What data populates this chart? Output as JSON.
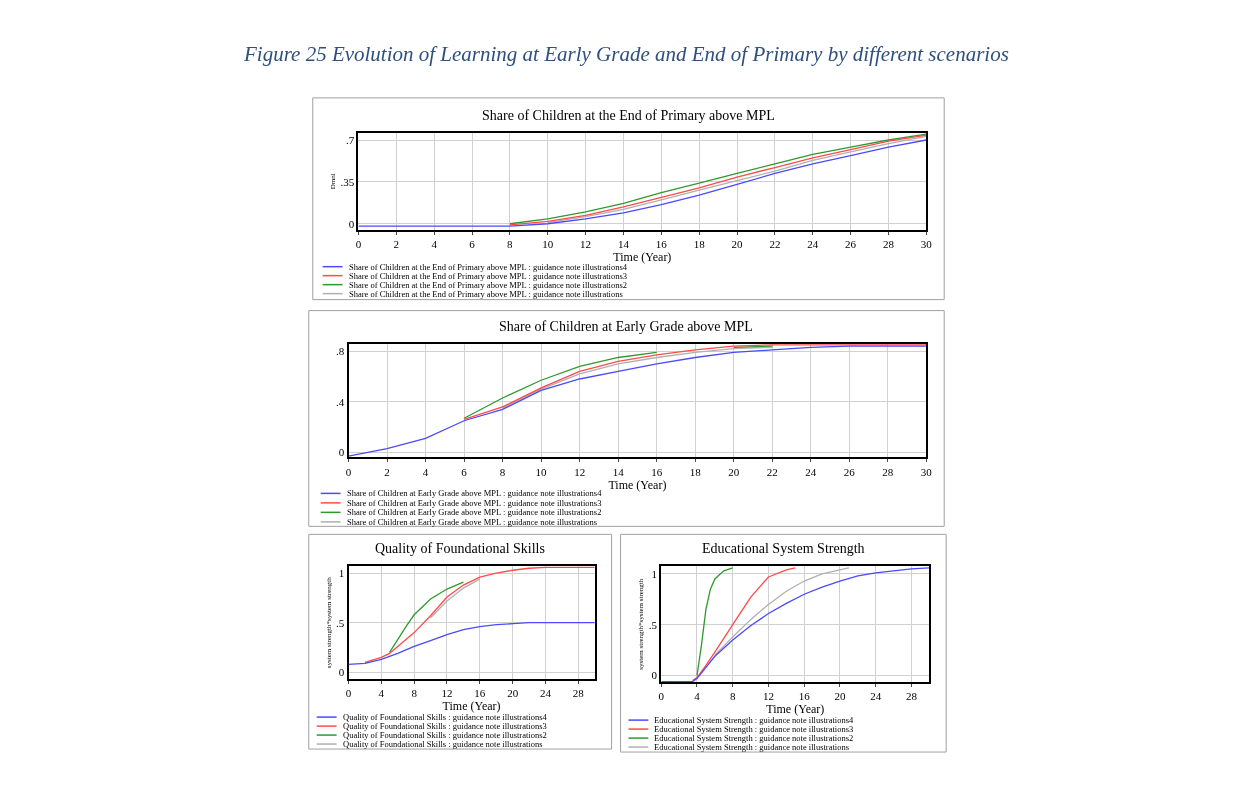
{
  "chart_data": [
    {
      "type": "line",
      "title": "Share of Children at the End of Primary above MPL",
      "xlabel": "Time (Year)",
      "ylabel": "Dmnl",
      "annotations": [
        "Figure 25 Evolution of Learning at Early Grade and End of Primary by different scenarios"
      ],
      "x": [
        0,
        2,
        4,
        6,
        8,
        10,
        12,
        14,
        16,
        18,
        20,
        22,
        24,
        26,
        28,
        30
      ],
      "xlim": [
        0,
        30
      ],
      "xticks": [
        0,
        2,
        4,
        6,
        8,
        10,
        12,
        14,
        16,
        18,
        20,
        22,
        24,
        26,
        28,
        30
      ],
      "ylim": [
        -0.05,
        0.76
      ],
      "yticks": [
        0,
        {
          "value": 0.35,
          "label": ".35"
        },
        {
          "value": 0.7,
          "label": ".7"
        }
      ],
      "grid": true,
      "legend": "bottom",
      "series": [
        {
          "name": "Share of Children at the End of Primary above MPL : guidance note illustrations4",
          "color": "#4a4aff",
          "values": [
            -0.02,
            -0.02,
            -0.02,
            -0.02,
            -0.02,
            0.0,
            0.04,
            0.09,
            0.16,
            0.24,
            0.33,
            0.42,
            0.5,
            0.57,
            0.64,
            0.7
          ]
        },
        {
          "name": "Share of Children at the End of Primary above MPL : guidance note illustrations3",
          "color": "#ff4a4a",
          "values": [
            null,
            null,
            null,
            null,
            -0.01,
            0.02,
            0.07,
            0.14,
            0.22,
            0.3,
            0.39,
            0.47,
            0.55,
            0.62,
            0.69,
            0.74
          ]
        },
        {
          "name": "Share of Children at the End of Primary above MPL : guidance note illustrations2",
          "color": "#2e9a2e",
          "values": [
            null,
            null,
            null,
            null,
            0.0,
            0.04,
            0.1,
            0.17,
            0.26,
            0.34,
            0.42,
            0.5,
            0.58,
            0.64,
            0.7,
            0.75
          ]
        },
        {
          "name": "Share of Children at the End of Primary above MPL : guidance note illustrations",
          "color": "#b0b0b0",
          "values": [
            null,
            null,
            null,
            null,
            null,
            0.01,
            0.06,
            0.12,
            0.2,
            0.28,
            0.36,
            0.44,
            0.53,
            0.6,
            0.67,
            0.73
          ]
        }
      ]
    },
    {
      "type": "line",
      "title": "Share of Children at Early Grade above MPL",
      "xlabel": "Time (Year)",
      "x": [
        0,
        2,
        4,
        6,
        8,
        10,
        12,
        14,
        16,
        18,
        20,
        22,
        24,
        26,
        28,
        30
      ],
      "xlim": [
        0,
        30
      ],
      "xticks": [
        0,
        2,
        4,
        6,
        8,
        10,
        12,
        14,
        16,
        18,
        20,
        22,
        24,
        26,
        28,
        30
      ],
      "ylim": [
        -0.04,
        0.86
      ],
      "yticks": [
        0,
        {
          "value": 0.4,
          "label": ".4"
        },
        {
          "value": 0.8,
          "label": ".8"
        }
      ],
      "grid": true,
      "legend": "bottom",
      "series": [
        {
          "name": "Share of Children at Early Grade above MPL : guidance note illustrations4",
          "color": "#4a4aff",
          "values": [
            -0.03,
            0.03,
            0.11,
            0.25,
            0.34,
            0.49,
            0.58,
            0.64,
            0.7,
            0.75,
            0.79,
            0.81,
            0.83,
            0.84,
            0.84,
            0.84
          ]
        },
        {
          "name": "Share of Children at Early Grade above MPL : guidance note illustrations3",
          "color": "#ff4a4a",
          "values": [
            null,
            null,
            null,
            0.26,
            0.36,
            0.51,
            0.64,
            0.72,
            0.77,
            0.81,
            0.84,
            0.85,
            0.85,
            0.85,
            0.85,
            0.85
          ]
        },
        {
          "name": "Share of Children at Early Grade above MPL : guidance note illustrations2",
          "color": "#2e9a2e",
          "values": [
            null,
            null,
            null,
            0.27,
            0.43,
            0.57,
            0.68,
            0.75,
            0.79,
            null,
            0.83,
            0.84,
            null,
            null,
            null,
            null
          ]
        },
        {
          "name": "Share of Children at Early Grade above MPL : guidance note illustrations",
          "color": "#b0b0b0",
          "values": [
            null,
            null,
            null,
            null,
            0.35,
            0.5,
            0.62,
            0.7,
            0.75,
            0.79,
            0.82,
            0.83,
            null,
            null,
            null,
            null
          ]
        }
      ]
    },
    {
      "type": "line",
      "title": "Quality of Foundational Skills",
      "xlabel": "Time (Year)",
      "ylabel": "system strength*system strength",
      "xlim": [
        0,
        30
      ],
      "xticks": [
        0,
        4,
        8,
        12,
        16,
        20,
        24,
        28
      ],
      "ylim": [
        -0.07,
        1.07
      ],
      "yticks": [
        0,
        {
          "value": 0.5,
          "label": ".5"
        },
        1
      ],
      "grid": true,
      "legend": "bottom",
      "series": [
        {
          "name": "Quality of Foundational Skills : guidance note illustrations4",
          "color": "#4a4aff",
          "x": [
            0,
            2,
            4,
            6,
            8,
            10,
            12,
            14,
            16,
            18,
            20,
            22,
            30
          ],
          "values": [
            0.08,
            0.09,
            0.13,
            0.19,
            0.26,
            0.32,
            0.38,
            0.43,
            0.46,
            0.48,
            0.49,
            0.5,
            0.5
          ]
        },
        {
          "name": "Quality of Foundational Skills : guidance note illustrations3",
          "color": "#ff4a4a",
          "x": [
            2,
            4,
            5,
            6,
            8,
            10,
            12,
            14,
            16,
            18,
            20,
            22,
            24,
            30
          ],
          "values": [
            0.1,
            0.15,
            0.19,
            0.26,
            0.4,
            0.57,
            0.76,
            0.88,
            0.96,
            1.0,
            1.03,
            1.05,
            1.06,
            1.06
          ]
        },
        {
          "name": "Quality of Foundational Skills : guidance note illustrations2",
          "color": "#2e9a2e",
          "x": [
            5,
            6,
            7,
            8,
            10,
            12,
            14
          ],
          "values": [
            0.2,
            0.33,
            0.46,
            0.58,
            0.74,
            0.84,
            0.91
          ]
        },
        {
          "name": "Quality of Foundational Skills : guidance note illustrations",
          "color": "#b0b0b0",
          "x": [
            10,
            12,
            14,
            16
          ],
          "values": [
            0.55,
            0.72,
            0.85,
            0.94
          ]
        }
      ]
    },
    {
      "type": "line",
      "title": "Educational System Strength",
      "xlabel": "Time (Year)",
      "ylabel": "system strength*system strength",
      "xlim": [
        0,
        30
      ],
      "xticks": [
        0,
        4,
        8,
        12,
        16,
        20,
        24,
        28
      ],
      "ylim": [
        -0.065,
        1.075
      ],
      "yticks": [
        0,
        {
          "value": 0.5,
          "label": ".5"
        },
        1
      ],
      "grid": true,
      "legend": "bottom",
      "series": [
        {
          "name": "Educational System Strength : guidance note illustrations4",
          "color": "#4a4aff",
          "x": [
            0,
            3.5,
            4,
            6,
            8,
            10,
            12,
            14,
            16,
            18,
            20,
            22,
            24,
            26,
            28,
            30
          ],
          "values": [
            -0.06,
            -0.06,
            -0.03,
            0.19,
            0.35,
            0.49,
            0.61,
            0.71,
            0.8,
            0.87,
            0.93,
            0.98,
            1.01,
            1.03,
            1.05,
            1.06
          ]
        },
        {
          "name": "Educational System Strength : guidance note illustrations3",
          "color": "#ff4a4a",
          "x": [
            3.5,
            4,
            5,
            6,
            8,
            10,
            12,
            14,
            15
          ],
          "values": [
            -0.05,
            -0.02,
            0.1,
            0.23,
            0.5,
            0.77,
            0.97,
            1.04,
            1.06
          ]
        },
        {
          "name": "Educational System Strength : guidance note illustrations2",
          "color": "#2e9a2e",
          "x": [
            4,
            4.5,
            5,
            5.5,
            6,
            7,
            8
          ],
          "values": [
            0.0,
            0.3,
            0.65,
            0.85,
            0.95,
            1.03,
            1.06
          ]
        },
        {
          "name": "Educational System Strength : guidance note illustrations",
          "color": "#b0b0b0",
          "x": [
            6,
            8,
            10,
            12,
            14,
            16,
            18,
            20,
            21
          ],
          "values": [
            0.2,
            0.38,
            0.55,
            0.7,
            0.83,
            0.93,
            1.0,
            1.04,
            1.06
          ]
        }
      ]
    }
  ]
}
